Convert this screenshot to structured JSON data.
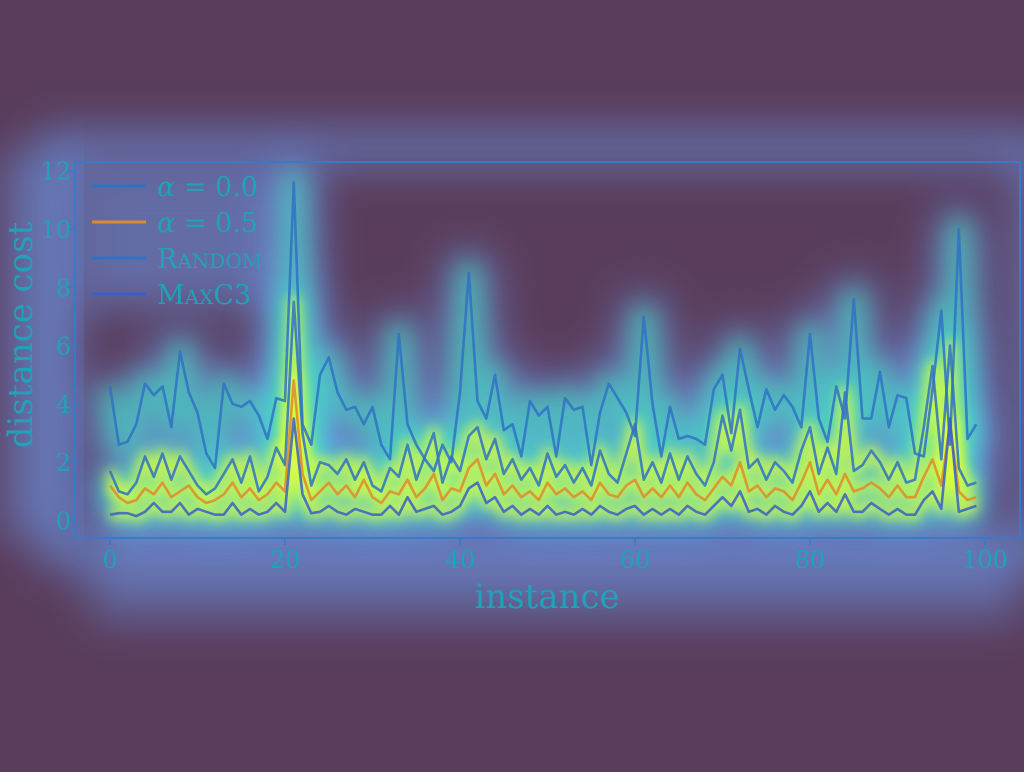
{
  "chart_data": {
    "type": "line",
    "xlabel": "instance",
    "ylabel": "distance cost",
    "xlim": [
      -4,
      104
    ],
    "ylim": [
      -0.6,
      12.3
    ],
    "xticks": [
      0,
      20,
      40,
      60,
      80,
      100
    ],
    "yticks": [
      0,
      2,
      4,
      6,
      8,
      10,
      12
    ],
    "grid": false,
    "legend_position": "top-left",
    "overlay": "heatmap-glow",
    "colors": {
      "background": "#5a3d5c",
      "axis": "#3a78c8",
      "text": "#1fa3b8",
      "glow_outer": "#6fa6ff",
      "glow_mid": "#40e0c0",
      "glow_core": "#e4ff38"
    },
    "x": [
      0,
      1,
      2,
      3,
      4,
      5,
      6,
      7,
      8,
      9,
      10,
      11,
      12,
      13,
      14,
      15,
      16,
      17,
      18,
      19,
      20,
      21,
      22,
      23,
      24,
      25,
      26,
      27,
      28,
      29,
      30,
      31,
      32,
      33,
      34,
      35,
      36,
      37,
      38,
      39,
      40,
      41,
      42,
      43,
      44,
      45,
      46,
      47,
      48,
      49,
      50,
      51,
      52,
      53,
      54,
      55,
      56,
      57,
      58,
      59,
      60,
      61,
      62,
      63,
      64,
      65,
      66,
      67,
      68,
      69,
      70,
      71,
      72,
      73,
      74,
      75,
      76,
      77,
      78,
      79,
      80,
      81,
      82,
      83,
      84,
      85,
      86,
      87,
      88,
      89,
      90,
      91,
      92,
      93,
      94,
      95,
      96,
      97,
      98,
      99
    ],
    "series": [
      {
        "name": "α = 0.0",
        "color": "#2f72c4",
        "values": [
          1.7,
          1.0,
          0.9,
          1.3,
          2.2,
          1.5,
          2.3,
          1.4,
          2.2,
          1.7,
          1.2,
          0.9,
          1.1,
          1.6,
          2.1,
          1.3,
          2.2,
          1.0,
          1.5,
          2.5,
          1.9,
          7.5,
          3.0,
          1.2,
          2.0,
          1.9,
          1.6,
          2.1,
          1.4,
          2.0,
          1.2,
          1.0,
          1.8,
          1.5,
          2.6,
          1.4,
          2.2,
          3.0,
          1.3,
          2.2,
          1.7,
          2.9,
          3.2,
          2.1,
          2.8,
          1.6,
          2.1,
          1.4,
          1.8,
          1.2,
          2.3,
          1.5,
          1.9,
          1.3,
          1.8,
          1.2,
          2.4,
          1.6,
          1.3,
          2.3,
          3.3,
          1.4,
          2.0,
          1.3,
          2.3,
          1.4,
          2.2,
          1.6,
          1.2,
          2.0,
          3.6,
          2.4,
          3.8,
          1.8,
          2.1,
          1.4,
          2.0,
          1.7,
          1.3,
          2.4,
          3.2,
          1.6,
          2.5,
          1.6,
          4.4,
          1.7,
          1.9,
          2.4,
          2.0,
          1.4,
          2.0,
          1.3,
          1.4,
          3.2,
          5.3,
          2.1,
          6.0,
          1.8,
          1.2,
          1.3
        ]
      },
      {
        "name": "α = 0.5",
        "color": "#e08a2c",
        "values": [
          1.2,
          0.8,
          0.6,
          0.7,
          1.1,
          0.9,
          1.3,
          0.8,
          1.0,
          1.2,
          0.8,
          0.6,
          0.7,
          0.9,
          1.3,
          0.8,
          1.1,
          0.7,
          0.9,
          1.3,
          1.0,
          4.8,
          1.6,
          0.7,
          1.0,
          1.3,
          0.9,
          1.2,
          0.8,
          1.4,
          0.8,
          0.6,
          1.0,
          0.9,
          1.4,
          0.8,
          1.1,
          1.6,
          0.7,
          1.1,
          1.0,
          1.8,
          2.1,
          1.2,
          1.6,
          0.9,
          1.2,
          0.8,
          1.0,
          0.7,
          1.3,
          0.9,
          1.1,
          0.8,
          1.0,
          0.7,
          1.3,
          0.9,
          0.8,
          1.2,
          1.4,
          0.8,
          1.1,
          0.8,
          1.2,
          0.8,
          1.3,
          0.9,
          0.7,
          1.1,
          1.5,
          1.2,
          2.0,
          1.0,
          1.2,
          0.8,
          1.1,
          1.0,
          0.7,
          1.3,
          2.0,
          0.9,
          1.4,
          0.9,
          1.6,
          1.0,
          1.1,
          1.3,
          1.1,
          0.8,
          1.2,
          0.8,
          0.8,
          1.5,
          2.1,
          1.2,
          3.3,
          1.0,
          0.7,
          0.8
        ]
      },
      {
        "name": "Random",
        "color": "#2f72c4",
        "values": [
          4.6,
          2.6,
          2.7,
          3.3,
          4.7,
          4.3,
          4.6,
          3.2,
          5.8,
          4.4,
          3.7,
          2.3,
          1.8,
          4.7,
          4.0,
          3.9,
          4.1,
          3.6,
          2.8,
          4.2,
          4.1,
          11.6,
          3.3,
          2.6,
          5.0,
          5.6,
          4.4,
          3.8,
          3.9,
          3.3,
          3.9,
          2.6,
          2.1,
          6.4,
          3.3,
          2.6,
          2.1,
          1.7,
          2.6,
          2.0,
          4.4,
          8.5,
          4.1,
          3.5,
          5.0,
          3.1,
          3.3,
          2.2,
          4.1,
          3.6,
          3.9,
          2.2,
          4.2,
          3.8,
          3.9,
          1.9,
          3.7,
          4.7,
          4.2,
          3.7,
          2.9,
          7.0,
          4.0,
          2.2,
          3.9,
          2.8,
          2.9,
          2.8,
          2.6,
          4.5,
          5.0,
          3.0,
          5.9,
          4.5,
          3.2,
          4.5,
          3.8,
          4.3,
          3.9,
          3.2,
          6.4,
          3.5,
          2.7,
          4.6,
          3.5,
          7.6,
          3.5,
          3.5,
          5.1,
          3.2,
          4.3,
          4.2,
          2.3,
          2.2,
          4.5,
          7.2,
          2.6,
          10.0,
          2.8,
          3.3
        ]
      },
      {
        "name": "MaxC3",
        "color": "#3a5fc8",
        "values": [
          0.2,
          0.25,
          0.25,
          0.15,
          0.3,
          0.6,
          0.3,
          0.3,
          0.6,
          0.2,
          0.4,
          0.3,
          0.2,
          0.2,
          0.6,
          0.2,
          0.4,
          0.2,
          0.3,
          0.6,
          0.3,
          3.5,
          0.9,
          0.25,
          0.3,
          0.5,
          0.3,
          0.2,
          0.4,
          0.3,
          0.2,
          0.2,
          0.5,
          0.2,
          0.8,
          0.3,
          0.4,
          0.5,
          0.2,
          0.3,
          0.5,
          1.1,
          1.3,
          0.6,
          0.8,
          0.3,
          0.5,
          0.2,
          0.4,
          0.2,
          0.5,
          0.2,
          0.3,
          0.2,
          0.4,
          0.2,
          0.5,
          0.3,
          0.2,
          0.4,
          0.5,
          0.2,
          0.4,
          0.2,
          0.4,
          0.2,
          0.5,
          0.3,
          0.2,
          0.5,
          0.8,
          0.5,
          1.0,
          0.3,
          0.4,
          0.2,
          0.5,
          0.3,
          0.2,
          0.5,
          1.0,
          0.3,
          0.6,
          0.3,
          0.9,
          0.3,
          0.3,
          0.6,
          0.4,
          0.2,
          0.4,
          0.2,
          0.2,
          0.7,
          1.0,
          0.4,
          3.5,
          0.3,
          0.4,
          0.5
        ]
      }
    ],
    "legend": [
      {
        "label_parts": [
          "α",
          " = 0.0"
        ]
      },
      {
        "label_parts": [
          "α",
          " = 0.5"
        ]
      },
      {
        "label_parts": [
          "R",
          "ANDOM"
        ]
      },
      {
        "label_parts": [
          "M",
          "AX",
          "C3"
        ]
      }
    ]
  }
}
